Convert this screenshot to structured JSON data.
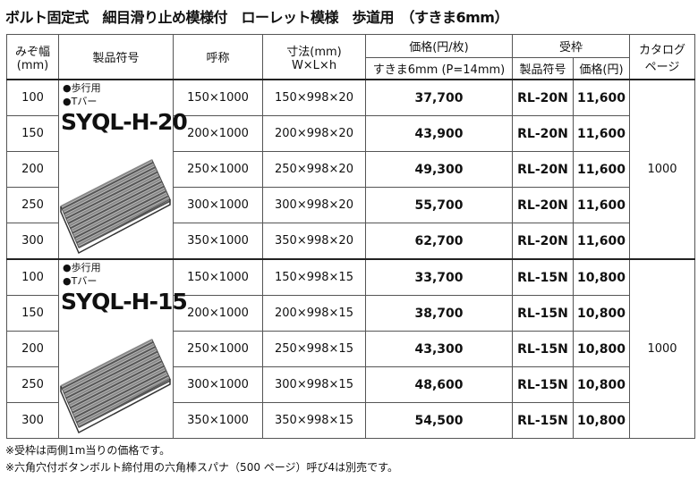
{
  "title": "ボルト固定式　細目滑り止め模様付　ローレット模様　歩道用　（すきま6mm）",
  "header": {
    "width": [
      "みぞ幅",
      "(mm)"
    ],
    "product_code": "製品符号",
    "nominal": "呼称",
    "dimensions": [
      "寸法(mm)",
      "W×L×h"
    ],
    "price": "価格(円/枚)",
    "price_sub": "すきま6mm (P=14mm)",
    "frame": "受枠",
    "frame_code": "製品符号",
    "frame_price": "価格(円)",
    "catalog_page": [
      "カタログ",
      "ページ"
    ]
  },
  "groups": [
    {
      "features": [
        "●歩行用",
        "●Tバー"
      ],
      "code": "SYQL-H-20",
      "catalog_page": "1000",
      "rows": [
        [
          "100",
          "150×1000",
          "150×998×20",
          "37,700",
          "RL-20N",
          "11,600"
        ],
        [
          "150",
          "200×1000",
          "200×998×20",
          "43,900",
          "RL-20N",
          "11,600"
        ],
        [
          "200",
          "250×1000",
          "250×998×20",
          "49,300",
          "RL-20N",
          "11,600"
        ],
        [
          "250",
          "300×1000",
          "300×998×20",
          "55,700",
          "RL-20N",
          "11,600"
        ],
        [
          "300",
          "350×1000",
          "350×998×20",
          "62,700",
          "RL-20N",
          "11,600"
        ]
      ]
    },
    {
      "features": [
        "●歩行用",
        "●Tバー"
      ],
      "code": "SYQL-H-15",
      "catalog_page": "1000",
      "rows": [
        [
          "100",
          "150×1000",
          "150×998×15",
          "33,700",
          "RL-15N",
          "10,800"
        ],
        [
          "150",
          "200×1000",
          "200×998×15",
          "38,700",
          "RL-15N",
          "10,800"
        ],
        [
          "200",
          "250×1000",
          "250×998×15",
          "43,300",
          "RL-15N",
          "10,800"
        ],
        [
          "250",
          "300×1000",
          "300×998×15",
          "48,600",
          "RL-15N",
          "10,800"
        ],
        [
          "300",
          "350×1000",
          "350×998×15",
          "54,500",
          "RL-15N",
          "10,800"
        ]
      ]
    }
  ],
  "notes": [
    "※受枠は両側1m当りの価格です。",
    "※六角穴付ボタンボルト締付用の六角棒スパナ（500 ページ）呼び4は別売です。"
  ]
}
